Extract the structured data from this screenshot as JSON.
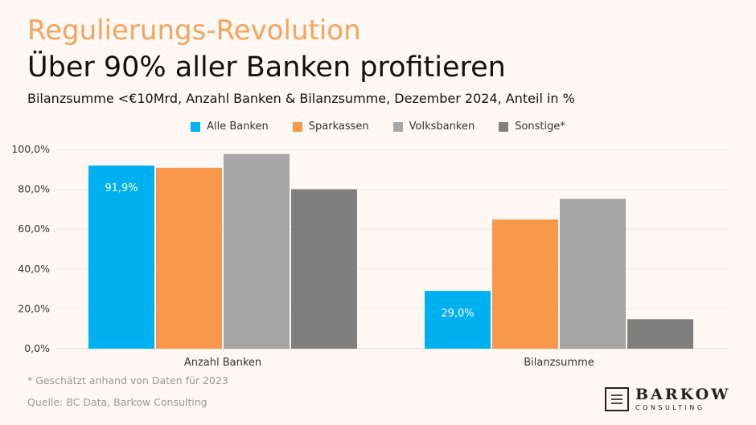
{
  "header": {
    "kicker": "Regulierungs-Revolution",
    "title": "Über 90% aller Banken profitieren",
    "subtitle": "Bilanzsumme <€10Mrd, Anzahl Banken & Bilanzsumme, Dezember 2024, Anteil in %"
  },
  "colors": {
    "alle_banken": "#00b0f0",
    "sparkassen": "#f7984a",
    "volksbanken": "#a6a6a6",
    "sonstige": "#7f7f7f",
    "kicker": "#f7a35c"
  },
  "legend": [
    {
      "label": "Alle Banken",
      "color": "#00b0f0"
    },
    {
      "label": "Sparkassen",
      "color": "#f7984a"
    },
    {
      "label": "Volksbanken",
      "color": "#a6a6a6"
    },
    {
      "label": "Sonstige*",
      "color": "#7f7f7f"
    }
  ],
  "chart_data": {
    "type": "bar",
    "categories": [
      "Anzahl Banken",
      "Bilanzsumme"
    ],
    "series": [
      {
        "name": "Alle Banken",
        "values": [
          91.9,
          29.0
        ],
        "color": "#00b0f0"
      },
      {
        "name": "Sparkassen",
        "values": [
          90.8,
          64.8
        ],
        "color": "#f7984a"
      },
      {
        "name": "Volksbanken",
        "values": [
          97.7,
          75.2
        ],
        "color": "#a6a6a6"
      },
      {
        "name": "Sonstige*",
        "values": [
          80.0,
          14.8
        ],
        "color": "#7f7f7f"
      }
    ],
    "data_labels": [
      {
        "series": "Alle Banken",
        "category": "Anzahl Banken",
        "text": "91,9%"
      },
      {
        "series": "Alle Banken",
        "category": "Bilanzsumme",
        "text": "29,0%"
      }
    ],
    "yticks": [
      0,
      20,
      40,
      60,
      80,
      100
    ],
    "ytick_labels": [
      "0,0%",
      "20,0%",
      "40,0%",
      "60,0%",
      "80,0%",
      "100,0%"
    ],
    "ylim": [
      0,
      100
    ],
    "xlabel": "",
    "ylabel": "",
    "legend_position": "top-center"
  },
  "footnote": "* Geschätzt anhand von Daten für 2023",
  "source": "Quelle: BC Data, Barkow Consulting",
  "logo": {
    "name": "BARKOW",
    "sub": "CONSULTING"
  }
}
